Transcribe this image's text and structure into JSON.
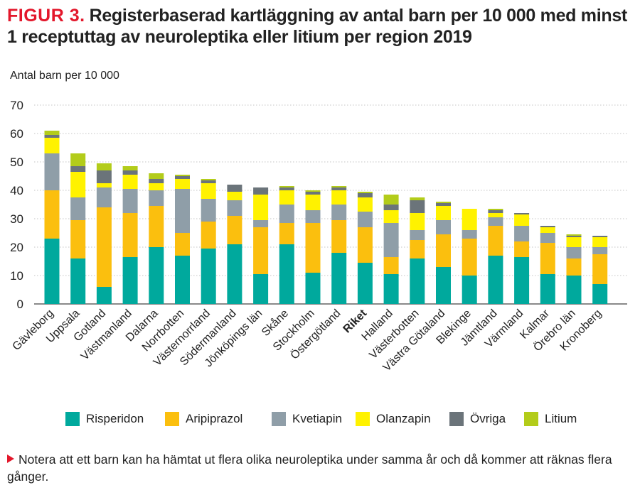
{
  "figure_label": "FIGUR 3.",
  "title": "Registerbaserad kartläggning av antal barn per 10 000 med minst 1 receptuttag av neuroleptika eller litium per region 2019",
  "note": "Notera att ett barn kan ha hämtat ut flera olika neuroleptika under samma år och då kommer att räknas flera gånger.",
  "colors": {
    "Risperidon": "#00a99d",
    "Aripiprazol": "#fbbf0e",
    "Kvetiapin": "#8f9ea8",
    "Olanzapin": "#fff200",
    "Övriga": "#6b747a",
    "Litium": "#b3cc1a"
  },
  "chart_data": {
    "type": "bar",
    "stacked": true,
    "ylabel": "Antal barn per 10 000",
    "ylim": [
      0,
      70
    ],
    "yticks": [
      "0",
      "10",
      "20",
      "30",
      "40",
      "50",
      "60",
      "70"
    ],
    "grid": true,
    "legend_position": "bottom",
    "bold_categories": [
      "Riket"
    ],
    "categories": [
      "Gävleborg",
      "Uppsala",
      "Gotland",
      "Västmanland",
      "Dalarna",
      "Norrbotten",
      "Västernorrland",
      "Södermanland",
      "Jönköpings län",
      "Skåne",
      "Stockholm",
      "Östergötland",
      "Riket",
      "Halland",
      "Västerbotten",
      "Västra Götaland",
      "Blekinge",
      "Jämtland",
      "Värmland",
      "Kalmar",
      "Örebro län",
      "Kronoberg"
    ],
    "series": [
      {
        "name": "Risperidon",
        "values": [
          23,
          16,
          6,
          16.5,
          20,
          17,
          19.5,
          21,
          10.5,
          21,
          11,
          18,
          14.5,
          10.5,
          16,
          13,
          10,
          17,
          16.5,
          10.5,
          10,
          7
        ]
      },
      {
        "name": "Aripiprazol",
        "values": [
          17,
          13.5,
          28,
          15.5,
          14.5,
          8,
          9.5,
          10,
          16.5,
          7.5,
          17.5,
          11.5,
          12.5,
          6,
          6.5,
          11.5,
          13,
          10.5,
          5.5,
          11,
          6,
          10.5
        ]
      },
      {
        "name": "Kvetiapin",
        "values": [
          13,
          8,
          7,
          8.5,
          5.5,
          15.5,
          8,
          5.5,
          2.5,
          6.5,
          4.5,
          5.5,
          5.5,
          12,
          3.5,
          5,
          3,
          3,
          5.5,
          3.5,
          4,
          2.5
        ]
      },
      {
        "name": "Olanzapin",
        "values": [
          5.5,
          9,
          1.5,
          5,
          2.5,
          3.5,
          5.5,
          3,
          9,
          5,
          5.5,
          5,
          5,
          4.5,
          6,
          5,
          7.5,
          1.5,
          4,
          2,
          3.5,
          3.5
        ]
      },
      {
        "name": "Övriga",
        "values": [
          1,
          2,
          4.5,
          1.5,
          1.5,
          1,
          1,
          2.5,
          2.5,
          1,
          1,
          1,
          1.5,
          2,
          4.5,
          1,
          0,
          1,
          0.5,
          0.5,
          0.5,
          0.5
        ]
      },
      {
        "name": "Litium",
        "values": [
          1.5,
          4.5,
          2.5,
          1.5,
          2,
          0.5,
          0.5,
          0,
          0,
          0.5,
          0.5,
          0.5,
          0.5,
          3.5,
          1,
          0.5,
          0,
          0.5,
          0,
          0,
          0.5,
          0
        ]
      }
    ]
  }
}
